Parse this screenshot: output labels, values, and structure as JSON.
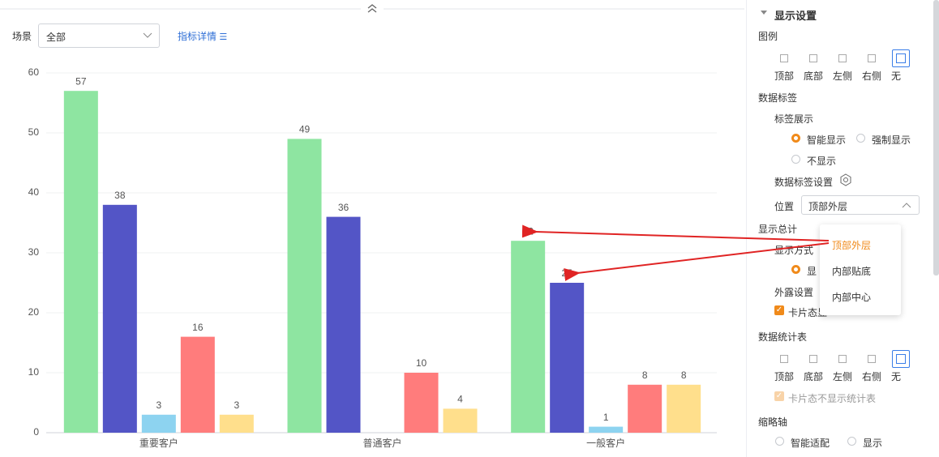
{
  "toolbar": {
    "scene_label": "场景",
    "scene_value": "全部",
    "detail_link": "指标详情"
  },
  "chart_data": {
    "type": "bar",
    "categories": [
      "重要客户",
      "普通客户",
      "一般客户"
    ],
    "series": [
      {
        "color": "#8ee5a1",
        "values": [
          57,
          49,
          32
        ]
      },
      {
        "color": "#5355c6",
        "values": [
          38,
          36,
          25
        ]
      },
      {
        "color": "#8dd3f0",
        "values": [
          3,
          null,
          1
        ]
      },
      {
        "color": "#ff7c7c",
        "values": [
          16,
          10,
          8
        ]
      },
      {
        "color": "#ffdf8c",
        "values": [
          3,
          4,
          8
        ]
      }
    ],
    "ylim": [
      0,
      60
    ],
    "yticks": [
      0,
      10,
      20,
      30,
      40,
      50,
      60
    ],
    "grid": true,
    "data_labels": true
  },
  "panel": {
    "title": "显示设置",
    "legend": {
      "label": "图例",
      "options": [
        "顶部",
        "底部",
        "左侧",
        "右侧",
        "无"
      ]
    },
    "data_labels": {
      "label": "数据标签",
      "display_label": "标签展示",
      "display_options": [
        "智能显示",
        "强制显示",
        "不显示"
      ],
      "settings_label": "数据标签设置",
      "position_label": "位置",
      "position_value": "顶部外层",
      "position_menu": [
        "顶部外层",
        "内部贴底",
        "内部中心"
      ]
    },
    "total": {
      "label": "显示总计",
      "mode_label": "显示方式",
      "mode_option": "显",
      "exposure_label": "外露设置",
      "exposure_option": "卡片态显"
    },
    "stats_table": {
      "label": "数据统计表",
      "options": [
        "顶部",
        "底部",
        "左侧",
        "右侧",
        "无"
      ],
      "checkbox": "卡片态不显示统计表"
    },
    "axis": {
      "label": "缩略轴",
      "options": [
        "智能适配",
        "显示"
      ]
    }
  }
}
